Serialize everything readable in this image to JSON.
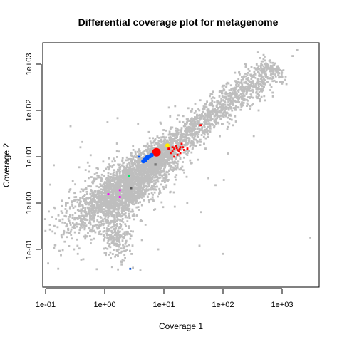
{
  "chart_data": {
    "type": "scatter",
    "title": "Differential coverage plot for metagenome",
    "xlabel": "Coverage  1",
    "ylabel": "Coverage  2",
    "xscale": "log",
    "yscale": "log",
    "xlim": [
      0.1,
      5000
    ],
    "ylim": [
      0.03,
      2000
    ],
    "grid": false,
    "legend": "none",
    "xticks": [
      {
        "value": 0.1,
        "label": "1e-01"
      },
      {
        "value": 1,
        "label": "1e+00"
      },
      {
        "value": 10,
        "label": "1e+01"
      },
      {
        "value": 100,
        "label": "1e+02"
      },
      {
        "value": 1000,
        "label": "1e+03"
      }
    ],
    "yticks": [
      {
        "value": 0.1,
        "label": "1e-01"
      },
      {
        "value": 1,
        "label": "1e+00"
      },
      {
        "value": 10,
        "label": "1e+01"
      },
      {
        "value": 100,
        "label": "1e+02"
      },
      {
        "value": 1000,
        "label": "1e+03"
      }
    ],
    "background_points": {
      "color": "#bebebe",
      "description_of_density": "dense diagonal cloud; densest between coverage 1-20 on both axes",
      "outliers": [
        {
          "x": 1800,
          "y": 2000
        },
        {
          "x": 1500,
          "y": 1500
        },
        {
          "x": 3000,
          "y": 0.18
        },
        {
          "x": 0.13,
          "y": 0.5
        },
        {
          "x": 0.14,
          "y": 0.8
        },
        {
          "x": 0.12,
          "y": 2.5
        },
        {
          "x": 0.15,
          "y": 0.45
        },
        {
          "x": 0.4,
          "y": 0.06
        },
        {
          "x": 0.35,
          "y": 0.08
        },
        {
          "x": 3.0,
          "y": 0.04
        },
        {
          "x": 4.0,
          "y": 0.035
        },
        {
          "x": 8.0,
          "y": 0.1
        },
        {
          "x": 100,
          "y": 0.08
        },
        {
          "x": 40,
          "y": 0.12
        },
        {
          "x": 400,
          "y": 100
        },
        {
          "x": 700,
          "y": 200
        },
        {
          "x": 1000,
          "y": 400
        },
        {
          "x": 800,
          "y": 800
        },
        {
          "x": 1.5,
          "y": 0.07
        },
        {
          "x": 2.0,
          "y": 0.06
        }
      ]
    },
    "series": [
      {
        "color": "#ff0000",
        "points": [
          {
            "x": 7.5,
            "y": 12.5,
            "size": 6
          },
          {
            "x": 15,
            "y": 15,
            "size": 2
          },
          {
            "x": 17,
            "y": 14,
            "size": 2
          },
          {
            "x": 19,
            "y": 16,
            "size": 2
          },
          {
            "x": 14,
            "y": 13,
            "size": 2
          },
          {
            "x": 16,
            "y": 17,
            "size": 2
          },
          {
            "x": 18,
            "y": 13,
            "size": 2
          },
          {
            "x": 20,
            "y": 19,
            "size": 2
          },
          {
            "x": 13,
            "y": 12,
            "size": 2
          },
          {
            "x": 22,
            "y": 14,
            "size": 2
          },
          {
            "x": 17,
            "y": 11,
            "size": 2
          },
          {
            "x": 15,
            "y": 10,
            "size": 2
          },
          {
            "x": 25,
            "y": 15,
            "size": 2
          },
          {
            "x": 12,
            "y": 15,
            "size": 2
          },
          {
            "x": 19,
            "y": 12,
            "size": 2
          },
          {
            "x": 14,
            "y": 16,
            "size": 2
          },
          {
            "x": 16.5,
            "y": 15.5,
            "size": 2
          },
          {
            "x": 18.5,
            "y": 14.5,
            "size": 2
          },
          {
            "x": 21,
            "y": 16,
            "size": 2
          },
          {
            "x": 42,
            "y": 48,
            "size": 2
          }
        ]
      },
      {
        "color": "#0055ff",
        "points": [
          {
            "x": 4.8,
            "y": 8.5,
            "size": 3.5
          },
          {
            "x": 5.2,
            "y": 9.5,
            "size": 3.5
          },
          {
            "x": 5.8,
            "y": 10.2,
            "size": 3
          },
          {
            "x": 6.2,
            "y": 10.8,
            "size": 3
          },
          {
            "x": 4.5,
            "y": 8.0,
            "size": 3
          },
          {
            "x": 3.8,
            "y": 10.0,
            "size": 1.8
          }
        ]
      },
      {
        "color": "#ffee00",
        "points": [
          {
            "x": 11.5,
            "y": 17.5,
            "size": 3
          }
        ]
      },
      {
        "color": "#777777",
        "points": [
          {
            "x": 7.2,
            "y": 6.8,
            "size": 2.5
          }
        ]
      },
      {
        "color": "#00ee66",
        "points": [
          {
            "x": 2.6,
            "y": 3.9,
            "size": 2
          }
        ]
      },
      {
        "color": "#555555",
        "points": [
          {
            "x": 2.8,
            "y": 2.1,
            "size": 2
          }
        ]
      },
      {
        "color": "#ff00ff",
        "points": [
          {
            "x": 1.8,
            "y": 1.9,
            "size": 2
          },
          {
            "x": 1.8,
            "y": 1.35,
            "size": 2
          },
          {
            "x": 1.15,
            "y": 1.55,
            "size": 2
          }
        ]
      },
      {
        "color": "#1155cc",
        "points": [
          {
            "x": 2.7,
            "y": 0.038,
            "size": 2
          }
        ]
      }
    ]
  }
}
